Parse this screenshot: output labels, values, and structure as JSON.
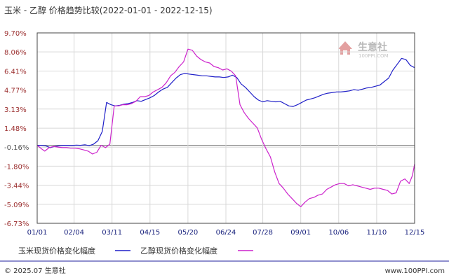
{
  "title": "玉米 - 乙醇 价格趋势比较(2022-01-01 - 2022-12-15)",
  "watermark": {
    "name": "生意社",
    "url": "100PPI.COM"
  },
  "footer": {
    "left": "© 2025.07 生意社",
    "right": "www.100PPI.com"
  },
  "colors": {
    "corn": "#1f1fc8",
    "ethanol": "#cc22cc",
    "grid": "#d8d8d8",
    "axis": "#444444"
  },
  "chart_data": {
    "type": "line",
    "yticks": [
      "9.70%",
      "8.06%",
      "6.41%",
      "4.77%",
      "3.13%",
      "1.48%",
      "-0.16%",
      "-1.80%",
      "-3.44%",
      "-5.09%",
      "-6.73%"
    ],
    "y_values": [
      9.7,
      8.06,
      6.41,
      4.77,
      3.13,
      1.48,
      -0.16,
      -1.8,
      -3.44,
      -5.09,
      -6.73
    ],
    "ylim": [
      -6.73,
      9.7
    ],
    "xticks": [
      "01/01",
      "02/04",
      "03/11",
      "04/15",
      "05/20",
      "06/24",
      "07/28",
      "09/01",
      "10/06",
      "11/10",
      "12/15"
    ],
    "x_values": [
      "2022-01-01",
      "2022-02-04",
      "2022-03-11",
      "2022-04-15",
      "2022-05-20",
      "2022-06-24",
      "2022-07-28",
      "2022-09-01",
      "2022-10-06",
      "2022-11-10",
      "2022-12-15"
    ],
    "series": [
      {
        "name": "玉米现货价格变化幅度",
        "color": "#1f1fc8",
        "points": [
          [
            "2022-01-01",
            0.0
          ],
          [
            "2022-01-05",
            0.0
          ],
          [
            "2022-01-09",
            -0.05
          ],
          [
            "2022-01-13",
            -0.2
          ],
          [
            "2022-01-17",
            -0.1
          ],
          [
            "2022-01-21",
            -0.05
          ],
          [
            "2022-01-25",
            0.0
          ],
          [
            "2022-01-29",
            0.0
          ],
          [
            "2022-02-02",
            -0.02
          ],
          [
            "2022-02-06",
            0.02
          ],
          [
            "2022-02-10",
            0.0
          ],
          [
            "2022-02-14",
            0.05
          ],
          [
            "2022-02-18",
            -0.03
          ],
          [
            "2022-02-22",
            0.1
          ],
          [
            "2022-02-26",
            0.4
          ],
          [
            "2022-03-02",
            1.2
          ],
          [
            "2022-03-06",
            3.7
          ],
          [
            "2022-03-10",
            3.5
          ],
          [
            "2022-03-14",
            3.4
          ],
          [
            "2022-03-18",
            3.45
          ],
          [
            "2022-03-22",
            3.55
          ],
          [
            "2022-03-26",
            3.6
          ],
          [
            "2022-03-30",
            3.7
          ],
          [
            "2022-04-03",
            3.85
          ],
          [
            "2022-04-07",
            3.8
          ],
          [
            "2022-04-11",
            3.95
          ],
          [
            "2022-04-15",
            4.1
          ],
          [
            "2022-04-19",
            4.3
          ],
          [
            "2022-04-23",
            4.6
          ],
          [
            "2022-04-27",
            4.85
          ],
          [
            "2022-05-01",
            5.0
          ],
          [
            "2022-05-05",
            5.4
          ],
          [
            "2022-05-09",
            5.8
          ],
          [
            "2022-05-13",
            6.1
          ],
          [
            "2022-05-17",
            6.2
          ],
          [
            "2022-05-21",
            6.15
          ],
          [
            "2022-05-25",
            6.1
          ],
          [
            "2022-05-29",
            6.05
          ],
          [
            "2022-06-02",
            6.0
          ],
          [
            "2022-06-06",
            6.0
          ],
          [
            "2022-06-10",
            5.95
          ],
          [
            "2022-06-14",
            5.9
          ],
          [
            "2022-06-18",
            5.9
          ],
          [
            "2022-06-22",
            5.85
          ],
          [
            "2022-06-26",
            5.9
          ],
          [
            "2022-06-30",
            6.05
          ],
          [
            "2022-07-04",
            5.85
          ],
          [
            "2022-07-08",
            5.3
          ],
          [
            "2022-07-12",
            5.0
          ],
          [
            "2022-07-16",
            4.6
          ],
          [
            "2022-07-20",
            4.2
          ],
          [
            "2022-07-24",
            3.9
          ],
          [
            "2022-07-28",
            3.75
          ],
          [
            "2022-08-01",
            3.85
          ],
          [
            "2022-08-05",
            3.8
          ],
          [
            "2022-08-09",
            3.75
          ],
          [
            "2022-08-13",
            3.8
          ],
          [
            "2022-08-17",
            3.6
          ],
          [
            "2022-08-21",
            3.4
          ],
          [
            "2022-08-25",
            3.35
          ],
          [
            "2022-08-29",
            3.5
          ],
          [
            "2022-09-02",
            3.7
          ],
          [
            "2022-09-06",
            3.9
          ],
          [
            "2022-09-10",
            4.0
          ],
          [
            "2022-09-14",
            4.1
          ],
          [
            "2022-09-18",
            4.25
          ],
          [
            "2022-09-22",
            4.4
          ],
          [
            "2022-09-26",
            4.5
          ],
          [
            "2022-09-30",
            4.55
          ],
          [
            "2022-10-04",
            4.6
          ],
          [
            "2022-10-08",
            4.6
          ],
          [
            "2022-10-12",
            4.65
          ],
          [
            "2022-10-16",
            4.7
          ],
          [
            "2022-10-20",
            4.8
          ],
          [
            "2022-10-24",
            4.75
          ],
          [
            "2022-10-28",
            4.85
          ],
          [
            "2022-11-01",
            4.95
          ],
          [
            "2022-11-05",
            5.0
          ],
          [
            "2022-11-09",
            5.1
          ],
          [
            "2022-11-13",
            5.2
          ],
          [
            "2022-11-17",
            5.5
          ],
          [
            "2022-11-21",
            5.8
          ],
          [
            "2022-11-25",
            6.5
          ],
          [
            "2022-11-29",
            7.0
          ],
          [
            "2022-12-03",
            7.5
          ],
          [
            "2022-12-07",
            7.4
          ],
          [
            "2022-12-11",
            6.9
          ],
          [
            "2022-12-15",
            6.7
          ]
        ]
      },
      {
        "name": "乙醇现货价格变化幅度",
        "color": "#cc22cc",
        "points": [
          [
            "2022-01-01",
            0.0
          ],
          [
            "2022-01-05",
            -0.3
          ],
          [
            "2022-01-08",
            -0.5
          ],
          [
            "2022-01-12",
            -0.2
          ],
          [
            "2022-01-16",
            -0.1
          ],
          [
            "2022-01-20",
            -0.15
          ],
          [
            "2022-01-24",
            -0.2
          ],
          [
            "2022-01-28",
            -0.2
          ],
          [
            "2022-02-01",
            -0.25
          ],
          [
            "2022-02-05",
            -0.25
          ],
          [
            "2022-02-09",
            -0.3
          ],
          [
            "2022-02-13",
            -0.4
          ],
          [
            "2022-02-17",
            -0.5
          ],
          [
            "2022-02-21",
            -0.75
          ],
          [
            "2022-02-25",
            -0.6
          ],
          [
            "2022-03-01",
            0.0
          ],
          [
            "2022-03-05",
            -0.2
          ],
          [
            "2022-03-09",
            0.1
          ],
          [
            "2022-03-13",
            3.4
          ],
          [
            "2022-03-17",
            3.4
          ],
          [
            "2022-03-21",
            3.5
          ],
          [
            "2022-03-25",
            3.5
          ],
          [
            "2022-03-29",
            3.6
          ],
          [
            "2022-04-02",
            3.8
          ],
          [
            "2022-04-06",
            4.2
          ],
          [
            "2022-04-10",
            4.2
          ],
          [
            "2022-04-14",
            4.3
          ],
          [
            "2022-04-18",
            4.6
          ],
          [
            "2022-04-22",
            4.8
          ],
          [
            "2022-04-26",
            5.0
          ],
          [
            "2022-04-30",
            5.4
          ],
          [
            "2022-05-04",
            6.0
          ],
          [
            "2022-05-08",
            6.3
          ],
          [
            "2022-05-12",
            6.8
          ],
          [
            "2022-05-16",
            7.2
          ],
          [
            "2022-05-20",
            8.3
          ],
          [
            "2022-05-24",
            8.2
          ],
          [
            "2022-05-28",
            7.7
          ],
          [
            "2022-06-01",
            7.4
          ],
          [
            "2022-06-05",
            7.2
          ],
          [
            "2022-06-09",
            7.1
          ],
          [
            "2022-06-13",
            6.8
          ],
          [
            "2022-06-17",
            6.7
          ],
          [
            "2022-06-21",
            6.5
          ],
          [
            "2022-06-25",
            6.6
          ],
          [
            "2022-06-29",
            6.4
          ],
          [
            "2022-07-03",
            6.0
          ],
          [
            "2022-07-07",
            3.5
          ],
          [
            "2022-07-11",
            2.8
          ],
          [
            "2022-07-15",
            2.3
          ],
          [
            "2022-07-19",
            1.9
          ],
          [
            "2022-07-23",
            1.5
          ],
          [
            "2022-07-27",
            0.5
          ],
          [
            "2022-07-31",
            -0.3
          ],
          [
            "2022-08-04",
            -1.0
          ],
          [
            "2022-08-08",
            -2.3
          ],
          [
            "2022-08-12",
            -3.3
          ],
          [
            "2022-08-16",
            -3.7
          ],
          [
            "2022-08-20",
            -4.2
          ],
          [
            "2022-08-24",
            -4.6
          ],
          [
            "2022-08-28",
            -5.0
          ],
          [
            "2022-09-01",
            -5.3
          ],
          [
            "2022-09-05",
            -4.9
          ],
          [
            "2022-09-09",
            -4.6
          ],
          [
            "2022-09-13",
            -4.5
          ],
          [
            "2022-09-17",
            -4.3
          ],
          [
            "2022-09-21",
            -4.2
          ],
          [
            "2022-09-25",
            -3.8
          ],
          [
            "2022-09-29",
            -3.6
          ],
          [
            "2022-10-03",
            -3.4
          ],
          [
            "2022-10-07",
            -3.3
          ],
          [
            "2022-10-11",
            -3.3
          ],
          [
            "2022-10-15",
            -3.5
          ],
          [
            "2022-10-19",
            -3.4
          ],
          [
            "2022-10-23",
            -3.5
          ],
          [
            "2022-10-27",
            -3.6
          ],
          [
            "2022-10-31",
            -3.7
          ],
          [
            "2022-11-04",
            -3.8
          ],
          [
            "2022-11-08",
            -3.7
          ],
          [
            "2022-11-12",
            -3.7
          ],
          [
            "2022-11-16",
            -3.8
          ],
          [
            "2022-11-20",
            -3.9
          ],
          [
            "2022-11-24",
            -4.2
          ],
          [
            "2022-11-28",
            -4.1
          ],
          [
            "2022-12-02",
            -3.1
          ],
          [
            "2022-12-06",
            -2.9
          ],
          [
            "2022-12-10",
            -3.3
          ],
          [
            "2022-12-13",
            -2.6
          ],
          [
            "2022-12-15",
            -1.6
          ]
        ]
      }
    ],
    "grid": true,
    "legend": "bottom-left"
  }
}
